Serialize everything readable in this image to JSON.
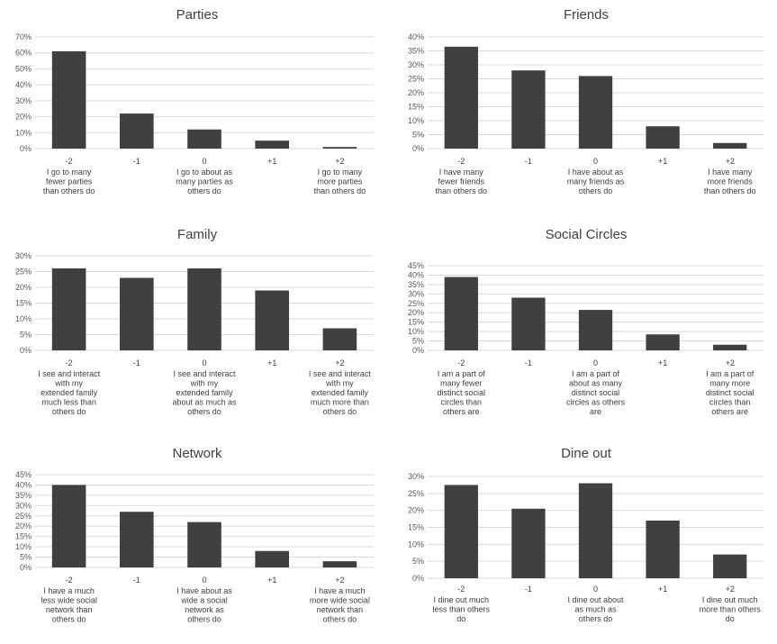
{
  "chart_data": [
    {
      "type": "bar",
      "title": "Parties",
      "categories": [
        "-2",
        "-1",
        "0",
        "+1",
        "+2"
      ],
      "category_descriptions": [
        [
          "I go to many",
          "fewer parties",
          "than others do"
        ],
        [],
        [
          "I go to about as",
          "many parties as",
          "others do"
        ],
        [],
        [
          "I go to many",
          "more parties",
          "than others do"
        ]
      ],
      "values": [
        61,
        22,
        12,
        5,
        1
      ],
      "yticks": [
        "0%",
        "10%",
        "20%",
        "30%",
        "40%",
        "50%",
        "60%",
        "70%"
      ],
      "ylim": [
        0,
        70
      ],
      "grid": true,
      "legend": false
    },
    {
      "type": "bar",
      "title": "Friends",
      "categories": [
        "-2",
        "-1",
        "0",
        "+1",
        "+2"
      ],
      "category_descriptions": [
        [
          "I have many",
          "fewer friends",
          "than others do"
        ],
        [],
        [
          "I have about as",
          "many friends as",
          "others do"
        ],
        [],
        [
          "I have many",
          "more friends",
          "than others do"
        ]
      ],
      "values": [
        36.5,
        28,
        26,
        8,
        2
      ],
      "yticks": [
        "0%",
        "5%",
        "10%",
        "15%",
        "20%",
        "25%",
        "30%",
        "35%",
        "40%"
      ],
      "ylim": [
        0,
        40
      ],
      "grid": true,
      "legend": false
    },
    {
      "type": "bar",
      "title": "Family",
      "categories": [
        "-2",
        "-1",
        "0",
        "+1",
        "+2"
      ],
      "category_descriptions": [
        [
          "I see and interact",
          "with my",
          "extended family",
          "much less than",
          "others do"
        ],
        [],
        [
          "I see and interact",
          "with my",
          "extended family",
          "about as much as",
          "others do"
        ],
        [],
        [
          "I see and interact",
          "with my",
          "extended family",
          "much more than",
          "others do"
        ]
      ],
      "values": [
        26,
        23,
        26,
        19,
        7
      ],
      "yticks": [
        "0%",
        "5%",
        "10%",
        "15%",
        "20%",
        "25%",
        "30%"
      ],
      "ylim": [
        0,
        30
      ],
      "grid": true,
      "legend": false
    },
    {
      "type": "bar",
      "title": "Social Circles",
      "categories": [
        "-2",
        "-1",
        "0",
        "+1",
        "+2"
      ],
      "category_descriptions": [
        [
          "I am a part of",
          "many fewer",
          "distinct social",
          "circles than",
          "others are"
        ],
        [],
        [
          "I am a part of",
          "about as many",
          "distinct social",
          "circles as others",
          "are"
        ],
        [],
        [
          "I am a part of",
          "many more",
          "distinct social",
          "circles than",
          "others are"
        ]
      ],
      "values": [
        39,
        28,
        21.5,
        8.5,
        3
      ],
      "yticks": [
        "0%",
        "5%",
        "10%",
        "15%",
        "20%",
        "25%",
        "30%",
        "35%",
        "40%",
        "45%"
      ],
      "ylim": [
        0,
        45
      ],
      "grid": true,
      "legend": false
    },
    {
      "type": "bar",
      "title": "Network",
      "categories": [
        "-2",
        "-1",
        "0",
        "+1",
        "+2"
      ],
      "category_descriptions": [
        [
          "I have a much",
          "less wide social",
          "network than",
          "others do"
        ],
        [],
        [
          "I have about as",
          "wide a social",
          "network as",
          "others do"
        ],
        [],
        [
          "I have a much",
          "more wide social",
          "network than",
          "others do"
        ]
      ],
      "values": [
        40,
        27,
        22,
        8,
        3
      ],
      "yticks": [
        "0%",
        "5%",
        "10%",
        "15%",
        "20%",
        "25%",
        "30%",
        "35%",
        "40%",
        "45%"
      ],
      "ylim": [
        0,
        45
      ],
      "grid": true,
      "legend": false
    },
    {
      "type": "bar",
      "title": "Dine out",
      "categories": [
        "-2",
        "-1",
        "0",
        "+1",
        "+2"
      ],
      "category_descriptions": [
        [
          "I dine out much",
          "less than others",
          "do"
        ],
        [],
        [
          "I dine out about",
          "as much as",
          "others do"
        ],
        [],
        [
          "I dine out much",
          "more than others",
          "do"
        ]
      ],
      "values": [
        27.5,
        20.5,
        28,
        17,
        7
      ],
      "yticks": [
        "0%",
        "5%",
        "10%",
        "15%",
        "20%",
        "25%",
        "30%"
      ],
      "ylim": [
        0,
        30
      ],
      "grid": true,
      "legend": false
    }
  ],
  "colors": {
    "bar": "#404040",
    "grid": "#d9d9d9",
    "title": "#404040",
    "tick": "#595959"
  }
}
